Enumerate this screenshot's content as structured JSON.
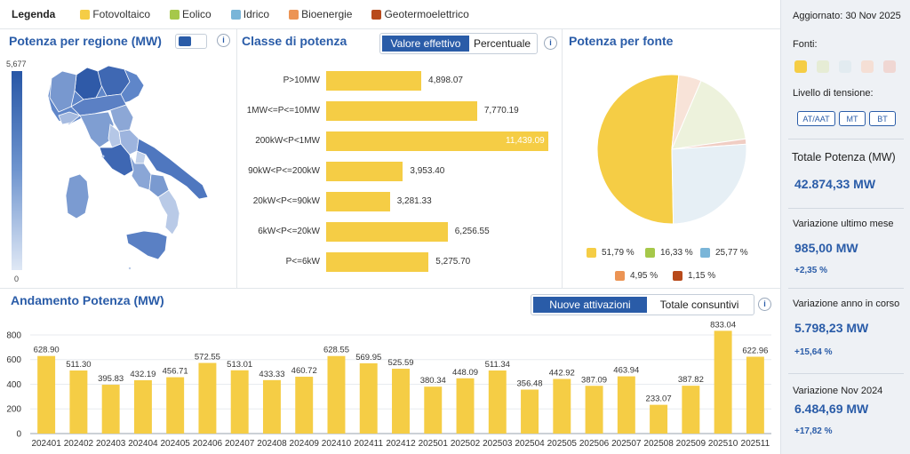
{
  "legend": {
    "title": "Legenda",
    "items": [
      {
        "label": "Fotovoltaico",
        "color": "#f5cd45"
      },
      {
        "label": "Eolico",
        "color": "#a6c84a"
      },
      {
        "label": "Idrico",
        "color": "#7ab5d8"
      },
      {
        "label": "Bioenergie",
        "color": "#ec9454"
      },
      {
        "label": "Geotermoelettrico",
        "color": "#b84a1b"
      }
    ]
  },
  "region_panel": {
    "title": "Potenza per regione (MW)",
    "info": "i",
    "scale_max": "5,677",
    "scale_min": "0"
  },
  "class_panel": {
    "title": "Classe di potenza",
    "info": "i",
    "tabs": [
      "Valore effettivo",
      "Percentuale"
    ],
    "active_tab": "Valore effettivo",
    "bars": [
      {
        "label": "P>10MW",
        "value": 4898.07,
        "display": "4,898.07"
      },
      {
        "label": "1MW<=P<=10MW",
        "value": 7770.19,
        "display": "7,770.19"
      },
      {
        "label": "200kW<P<1MW",
        "value": 11439.09,
        "display": "11,439.09"
      },
      {
        "label": "90kW<P<=200kW",
        "value": 3953.4,
        "display": "3,953.40"
      },
      {
        "label": "20kW<P<=90kW",
        "value": 3281.33,
        "display": "3,281.33"
      },
      {
        "label": "6kW<P<=20kW",
        "value": 6256.55,
        "display": "6,256.55"
      },
      {
        "label": "P<=6kW",
        "value": 5275.7,
        "display": "5,275.70"
      }
    ],
    "max": 11439.09
  },
  "source_panel": {
    "title": "Potenza per fonte",
    "slices": [
      {
        "name": "Fotovoltaico",
        "pct": 51.79,
        "label": "51,79 %",
        "color": "#f5cd45",
        "pie_color": "#f5cd45"
      },
      {
        "name": "Eolico",
        "pct": 16.33,
        "label": "16,33 %",
        "color": "#a6c84a",
        "pie_color": "#edf2dc"
      },
      {
        "name": "Idrico",
        "pct": 25.77,
        "label": "25,77 %",
        "color": "#7ab5d8",
        "pie_color": "#e6eff5"
      },
      {
        "name": "Bioenergie",
        "pct": 4.95,
        "label": "4,95 %",
        "color": "#ec9454",
        "pie_color": "#f8e3d8"
      },
      {
        "name": "Geotermoelettrico",
        "pct": 1.15,
        "label": "1,15 %",
        "color": "#b84a1b",
        "pie_color": "#f0cdc3"
      }
    ]
  },
  "trend_panel": {
    "title": "Andamento Potenza (MW)",
    "info": "i",
    "tabs": [
      "Nuove attivazioni",
      "Totale consuntivi"
    ],
    "active_tab": "Nuove attivazioni"
  },
  "chart_data": {
    "type": "bar",
    "title": "Andamento Potenza (MW)",
    "xlabel": "",
    "ylabel": "",
    "ylim": [
      0,
      850
    ],
    "yticks": [
      0,
      200,
      400,
      600,
      800
    ],
    "categories": [
      "202401",
      "202402",
      "202403",
      "202404",
      "202405",
      "202406",
      "202407",
      "202408",
      "202409",
      "202410",
      "202411",
      "202412",
      "202501",
      "202502",
      "202503",
      "202504",
      "202505",
      "202506",
      "202507",
      "202508",
      "202509",
      "202510",
      "202511"
    ],
    "values": [
      628.9,
      511.3,
      395.83,
      432.19,
      456.71,
      572.55,
      513.01,
      433.33,
      460.72,
      628.55,
      569.95,
      525.59,
      380.34,
      448.09,
      511.34,
      356.48,
      442.92,
      387.09,
      463.94,
      233.07,
      387.82,
      833.04,
      622.96
    ],
    "value_labels": [
      "628.90",
      "511.30",
      "395.83",
      "432.19",
      "456.71",
      "572.55",
      "513.01",
      "433.33",
      "460.72",
      "628.55",
      "569.95",
      "525.59",
      "380.34",
      "448.09",
      "511.34",
      "356.48",
      "442.92",
      "387.09",
      "463.94",
      "233.07",
      "387.82",
      "833.04",
      "622.96"
    ],
    "color": "#f5cd45"
  },
  "side": {
    "updated": "Aggiornato: 30 Nov 2025",
    "fonti_label": "Fonti:",
    "fonti_colors": [
      "#f5cd45",
      "#e6ecd5",
      "#e2ebf0",
      "#f5dfd5",
      "#f0d7d3"
    ],
    "tension_label": "Livello di tensione:",
    "tension_buttons": [
      "AT/AAT",
      "MT",
      "BT"
    ],
    "total_label": "Totale Potenza (MW)",
    "total_value": "42.874,33 MW",
    "month_label": "Variazione ultimo mese",
    "month_value": "985,00 MW",
    "month_delta": "+2,35 %",
    "year_label": "Variazione anno in corso",
    "year_value": "5.798,23 MW",
    "year_delta": "+15,64 %",
    "nov_label": "Variazione Nov 2024",
    "nov_value": "6.484,69 MW",
    "nov_delta": "+17,82 %"
  }
}
